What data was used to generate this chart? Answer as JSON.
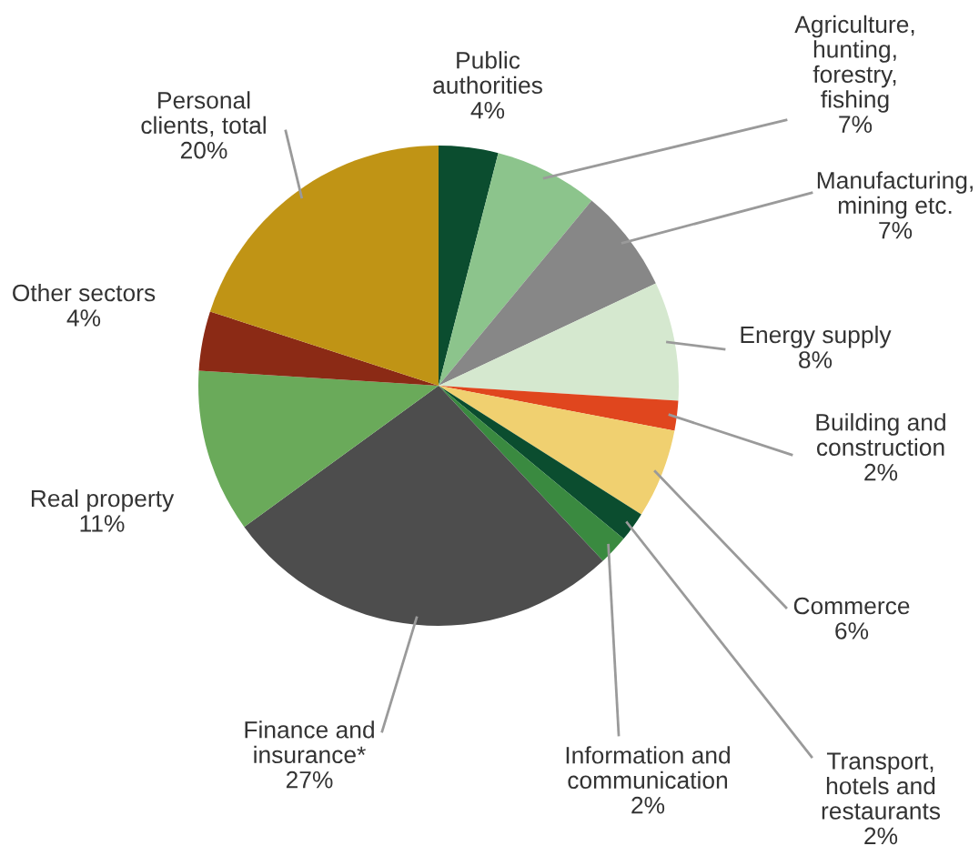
{
  "chart_data": {
    "type": "pie",
    "categories": [
      "Public\nauthorities",
      "Agriculture,\nhunting,\nforestry,\nfishing",
      "Manufacturing,\nmining etc.",
      "Energy supply",
      "Building and\nconstruction",
      "Commerce",
      "Transport,\nhotels and\nrestaurants",
      "Information and\ncommunication",
      "Finance and\ninsurance*",
      "Real property",
      "Other sectors",
      "Personal\nclients, total"
    ],
    "values": [
      4,
      7,
      7,
      8,
      2,
      6,
      2,
      2,
      27,
      11,
      4,
      20
    ],
    "value_labels": [
      "4%",
      "7%",
      "7%",
      "8%",
      "2%",
      "6%",
      "2%",
      "2%",
      "27%",
      "11%",
      "4%",
      "20%"
    ],
    "colors": [
      "#0b4d2f",
      "#8cc48c",
      "#878787",
      "#d5e8cf",
      "#e0461e",
      "#f0d070",
      "#0b4d2f",
      "#3a8a40",
      "#4d4d4d",
      "#6aaa5a",
      "#8b2a15",
      "#c09415"
    ]
  }
}
